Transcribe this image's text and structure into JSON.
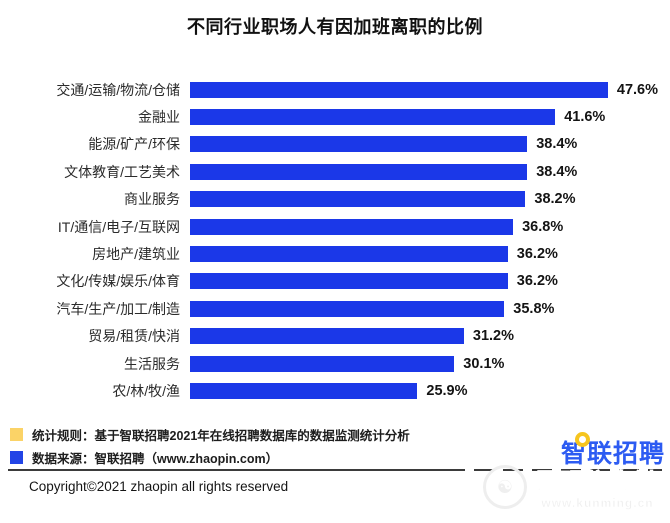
{
  "chart_data": {
    "type": "bar",
    "orientation": "horizontal",
    "title": "不同行业职场人有因加班离职的比例",
    "categories": [
      "交通/运输/物流/仓储",
      "金融业",
      "能源/矿产/环保",
      "文体教育/工艺美术",
      "商业服务",
      "IT/通信/电子/互联网",
      "房地产/建筑业",
      "文化/传媒/娱乐/体育",
      "汽车/生产/加工/制造",
      "贸易/租赁/快消",
      "生活服务",
      "农/林/牧/渔"
    ],
    "values": [
      47.6,
      41.6,
      38.4,
      38.4,
      38.2,
      36.8,
      36.2,
      36.2,
      35.8,
      31.2,
      30.1,
      25.9
    ],
    "labels": [
      "47.6%",
      "41.6%",
      "38.4%",
      "38.4%",
      "38.2%",
      "36.8%",
      "36.2%",
      "36.2%",
      "35.8%",
      "31.2%",
      "30.1%",
      "25.9%"
    ],
    "xlim": [
      0,
      50
    ],
    "grid": false,
    "legend_position": "none",
    "bar_color": "#1B38E8"
  },
  "footnotes": {
    "items": [
      {
        "swatch_color": "#FBD367",
        "text": "统计规则：基于智联招聘2021年在线招聘数据库的数据监测统计分析"
      },
      {
        "swatch_color": "#2244E6",
        "text": "数据来源：智联招聘（www.zhaopin.com）"
      }
    ]
  },
  "branding": {
    "logo_text": "智联招聘",
    "logo_color": "#2C5BF2",
    "logo_accent_color": "#F6C51E"
  },
  "watermark": {
    "name": "昆明信息港",
    "url": "www.kunming.cn"
  },
  "footer": {
    "copyright": "Copyright©2021 zhaopin  all rights reserved"
  }
}
